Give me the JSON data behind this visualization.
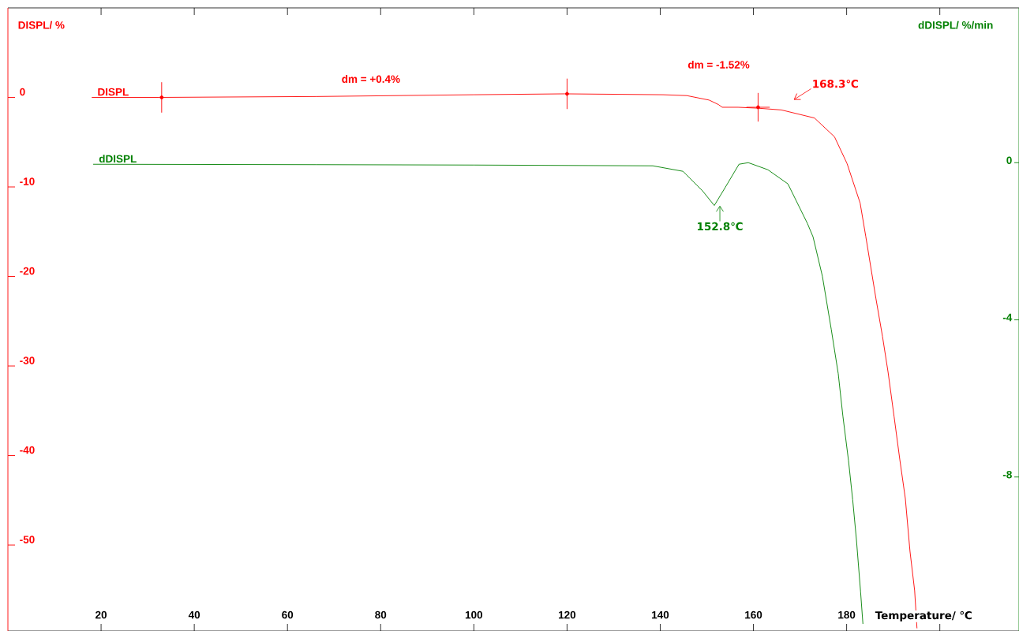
{
  "chart_data": {
    "type": "line",
    "xlabel": "Temperature/ ℃",
    "ylabel": "DISPL/ %",
    "y2label": "dDISPL/ %/min",
    "xlim": [
      0,
      217
    ],
    "xticks": [
      20,
      40,
      60,
      80,
      100,
      120,
      140,
      160,
      180,
      {
        "value": 200,
        "label": null
      }
    ],
    "ylim": [
      -59.6,
      10
    ],
    "yticks": [
      -50,
      -40,
      -30,
      -20,
      -10,
      0
    ],
    "y2lim": [
      -11.92,
      3.94
    ],
    "y2ticks": [
      -8,
      -4,
      0
    ],
    "series": [
      {
        "name": "DISPL",
        "color": "#ff0000",
        "axis": "y",
        "x": [
          18.0,
          32.4,
          66.2,
          100.0,
          119.5,
          140.6,
          145.7,
          150.5,
          152.5,
          153.3,
          156.7,
          160.9,
          166.0,
          173.1,
          177.4,
          180.1,
          182.9,
          184.1,
          186.3,
          187.7,
          188.9,
          190.2,
          191.4,
          192.6,
          193.6,
          194.6,
          195.1
        ],
        "values": [
          0,
          0,
          0.1,
          0.3,
          0.4,
          0.3,
          0.2,
          -0.3,
          -0.8,
          -1.1,
          -1.1,
          -1.2,
          -1.4,
          -2.3,
          -4.4,
          -7.4,
          -11.8,
          -15.5,
          -22.5,
          -26.7,
          -30.7,
          -35.7,
          -40.4,
          -44.8,
          -50.7,
          -55.1,
          -59.3
        ]
      },
      {
        "name": "dDISPL",
        "color": "#008000",
        "axis": "y2",
        "x": [
          18.3,
          66.2,
          100,
          138.4,
          144.9,
          149.1,
          151.6,
          154.0,
          156.9,
          158.9,
          163.1,
          167.4,
          171.6,
          172.8,
          174.8,
          176.7,
          178.2,
          179.2,
          180.4,
          181.3,
          182.1,
          183.0,
          183.5
        ],
        "values": [
          -0.04,
          -0.05,
          -0.06,
          -0.08,
          -0.22,
          -0.72,
          -1.09,
          -0.62,
          -0.04,
          0,
          -0.18,
          -0.54,
          -1.55,
          -1.89,
          -2.89,
          -4.24,
          -5.37,
          -6.45,
          -7.58,
          -8.58,
          -9.59,
          -10.93,
          -11.74
        ]
      },
      {
        "type": "scatter",
        "color": "#ff0000",
        "axis": "y",
        "x": [
          33,
          120,
          161
        ],
        "values": [
          0,
          0.4,
          -1.1
        ],
        "errors": [
          1.7,
          1.7,
          1.6
        ],
        "xerrors": [
          null,
          null,
          2.5
        ]
      }
    ],
    "annotations": [
      "dm = +0.4%",
      "dm = -1.52%",
      {
        "text": "168.3℃",
        "x": 168.3,
        "y": -1.5
      },
      {
        "text": "152.8℃",
        "x": 152.8,
        "y": -11.9
      }
    ]
  }
}
